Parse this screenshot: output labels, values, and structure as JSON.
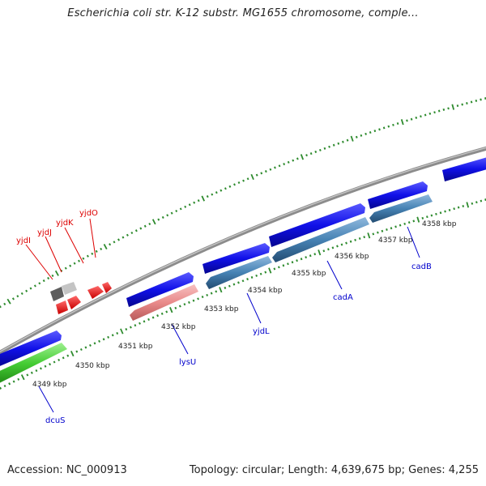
{
  "title": "Escherichia coli str. K-12 substr. MG1655 chromosome, comple...",
  "footer": {
    "accession": "Accession: NC_000913",
    "topology": "Topology: circular; Length: 4,639,675 bp; Genes: 4,255"
  },
  "colors": {
    "backbone": "#8c8c8c",
    "tick": "#2e8b2e",
    "forward_gene": "#1414e6",
    "reverse_gene": "#4682b4",
    "lysU": "#e98a8a",
    "dcuS": "#44cc33",
    "small_features": "#ee1111",
    "pseudo_features": "#777777",
    "forward_label": "#dd0000",
    "reverse_label": "#0000cc"
  },
  "scale_labels": [
    "4349 kbp",
    "4350 kbp",
    "4351 kbp",
    "4352 kbp",
    "4353 kbp",
    "4354 kbp",
    "4355 kbp",
    "4356 kbp",
    "4357 kbp",
    "4358 kbp"
  ],
  "forward_gene_labels": [
    "yjdI",
    "yjdJ",
    "yjdK",
    "yjdO"
  ],
  "reverse_gene_labels": [
    "dcuS",
    "lysU",
    "yjdL",
    "cadA",
    "cadB"
  ]
}
